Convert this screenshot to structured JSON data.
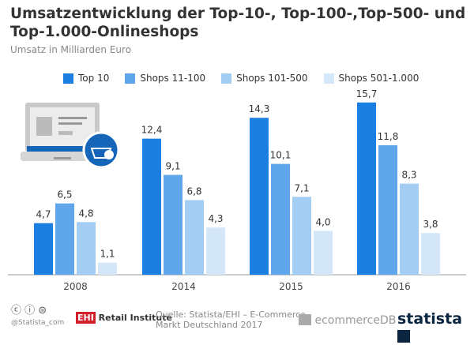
{
  "chart_data": {
    "type": "bar",
    "title": "Umsatzentwicklung der Top-10-, Top-100-,Top-500- und Top-1.000-Onlineshops",
    "subtitle": "Umsatz in Milliarden Euro",
    "categories": [
      "2008",
      "2014",
      "2015",
      "2016"
    ],
    "series": [
      {
        "name": "Top 10",
        "color": "#1a7fe0",
        "values": [
          4.7,
          12.4,
          14.3,
          15.7
        ],
        "labels": [
          "4,7",
          "12,4",
          "14,3",
          "15,7"
        ]
      },
      {
        "name": "Shops 11-100",
        "color": "#5fa6ea",
        "values": [
          6.5,
          9.1,
          10.1,
          11.8
        ],
        "labels": [
          "6,5",
          "9,1",
          "10,1",
          "11,8"
        ]
      },
      {
        "name": "Shops 101-500",
        "color": "#a3cdf3",
        "values": [
          4.8,
          6.8,
          7.1,
          8.3
        ],
        "labels": [
          "4,8",
          "6,8",
          "7,1",
          "8,3"
        ]
      },
      {
        "name": "Shops 501-1.000",
        "color": "#d3e7f9",
        "values": [
          1.1,
          4.3,
          4.0,
          3.8
        ],
        "labels": [
          "1,1",
          "4,3",
          "4,0",
          "3,8"
        ]
      }
    ],
    "ylim": [
      0,
      16
    ],
    "legend": "top"
  },
  "footer": {
    "handle": "@Statista_com",
    "ehi": "EHI",
    "ehi_rest": "Retail Institute",
    "source1": "Quelle: Statista/EHI – E-Commerce",
    "source2": "Markt Deutschland 2017",
    "ecommercedb": "ecommerceDB",
    "statista": "statista"
  }
}
